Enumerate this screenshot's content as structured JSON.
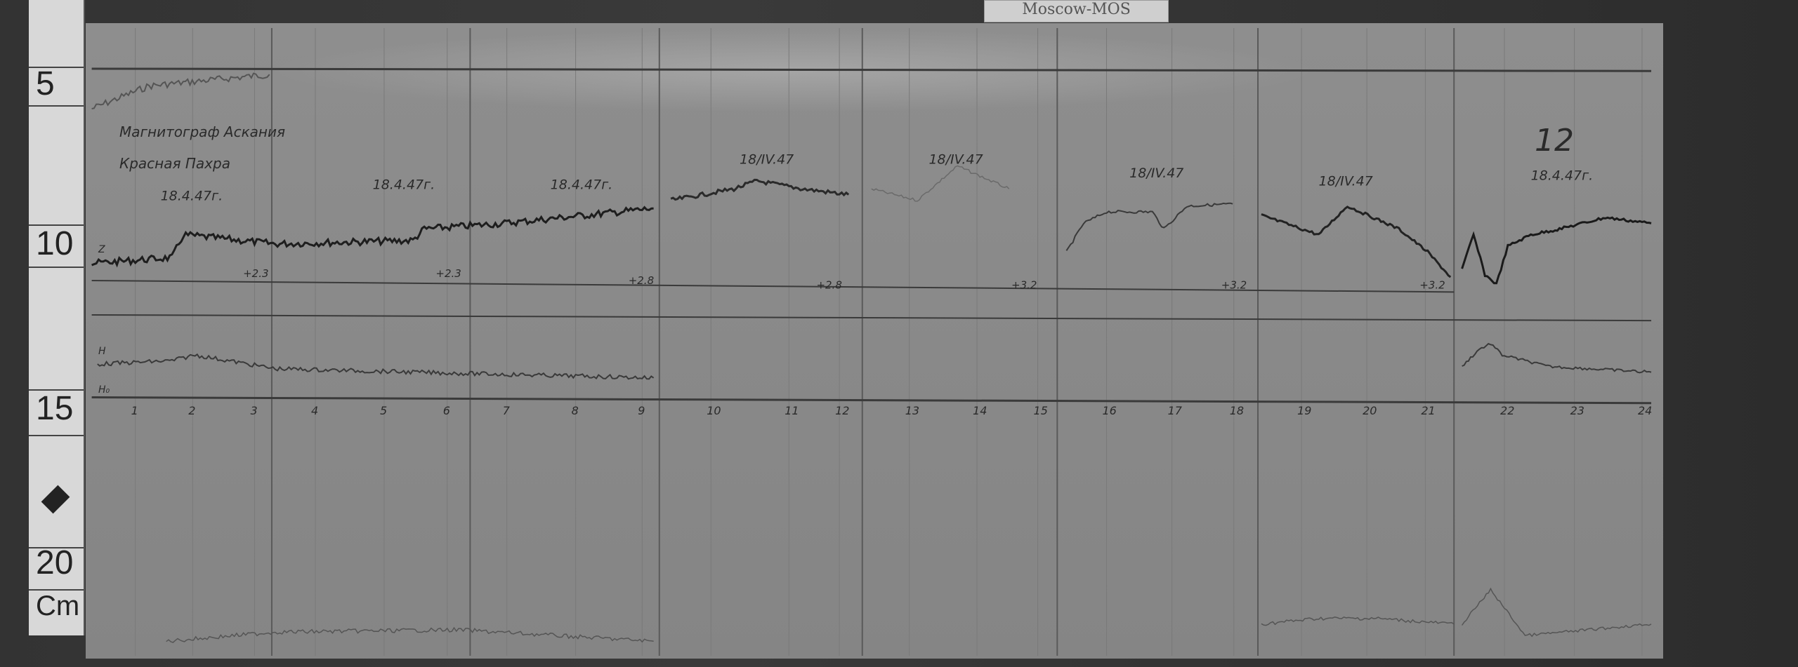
{
  "station_tag": "Moscow-MOS",
  "ruler": {
    "marks": [
      "5",
      "10",
      "15",
      "20"
    ],
    "unit": "Cm"
  },
  "annotation": {
    "line1": "Магнитограф Аскания",
    "line2": "Красная Пахра"
  },
  "dates": [
    "18.4.47г.",
    "18.4.47г.",
    "18.4.47г.",
    "18/IV.47",
    "18/IV.47",
    "18/IV.47",
    "18/IV.47",
    "18.4.47г."
  ],
  "baseline_values": [
    "+2.3",
    "+2.3",
    "+2.8",
    "+2.8",
    "+3.2",
    "+3.2",
    "+3.2"
  ],
  "component_labels": [
    "Z",
    "H",
    "H₀"
  ],
  "hours": [
    "1",
    "2",
    "3",
    "4",
    "5",
    "6",
    "7",
    "8",
    "9",
    "10",
    "11",
    "12",
    "13",
    "14",
    "15",
    "16",
    "17",
    "18",
    "19",
    "20",
    "21",
    "22",
    "23",
    "24"
  ],
  "panel_number": "12"
}
